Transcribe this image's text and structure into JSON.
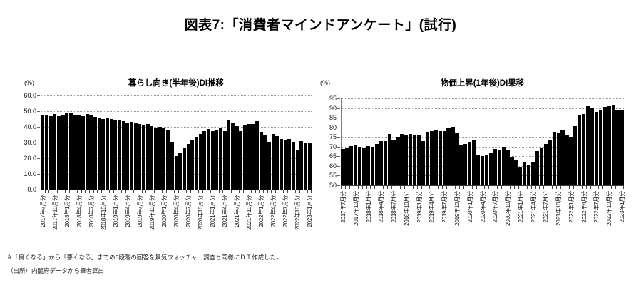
{
  "title": "図表7:「消費者マインドアンケート」(試行)",
  "notes": [
    "※「良くなる」から「悪くなる」までの5段階の回答を景気ウォッチャー調査と同様にＤＩ作成した。",
    "（出所）内閣府データから筆者算出"
  ],
  "bar_color": "#000000",
  "grid_color": "#9a9a9a",
  "chart_data": [
    {
      "type": "bar",
      "title": "暮らし向き(半年後)DI推移",
      "unit": "(%)",
      "ylabel": "%",
      "ylim": [
        0,
        60
      ],
      "ystep": 10,
      "y_tick_labels": [
        "60.0",
        "50.0",
        "40.0",
        "30.0",
        "20.0",
        "10.0",
        "0.0"
      ],
      "grid": "on",
      "legend": "none",
      "x_label_interval": 3,
      "categories": [
        "2017年7月分",
        "2017年8月分",
        "2017年9月分",
        "2017年10月分",
        "2017年11月分",
        "2017年12月分",
        "2018年1月分",
        "2018年2月分",
        "2018年3月分",
        "2018年4月分",
        "2018年5月分",
        "2018年6月分",
        "2018年7月分",
        "2018年8月分",
        "2018年9月分",
        "2018年10月分",
        "2018年11月分",
        "2018年12月分",
        "2019年1月分",
        "2019年2月分",
        "2019年3月分",
        "2019年4月分",
        "2019年5月分",
        "2019年6月分",
        "2019年7月分",
        "2019年8月分",
        "2019年9月分",
        "2019年10月分",
        "2019年11月分",
        "2019年12月分",
        "2020年1月分",
        "2020年2月分",
        "2020年3月分",
        "2020年4月分",
        "2020年5月分",
        "2020年6月分",
        "2020年7月分",
        "2020年8月分",
        "2020年9月分",
        "2020年10月分",
        "2020年11月分",
        "2020年12月分",
        "2021年1月分",
        "2021年2月分",
        "2021年3月分",
        "2021年4月分",
        "2021年5月分",
        "2021年6月分",
        "2021年7月分",
        "2021年8月分",
        "2021年9月分",
        "2021年10月分",
        "2021年11月分",
        "2021年12月分",
        "2022年1月分",
        "2022年2月分",
        "2022年3月分",
        "2022年4月分",
        "2022年5月分",
        "2022年6月分",
        "2022年7月分",
        "2022年8月分",
        "2022年9月分",
        "2022年10月分",
        "2022年11月分",
        "2022年12月分",
        "2023年1月分"
      ],
      "values": [
        47.4,
        47.7,
        47.0,
        48.1,
        46.6,
        47.2,
        49.0,
        48.5,
        47.4,
        47.8,
        47.0,
        48.2,
        47.6,
        46.5,
        45.8,
        45.2,
        45.5,
        44.8,
        44.0,
        44.3,
        43.5,
        42.7,
        43.1,
        42.3,
        41.9,
        41.3,
        41.7,
        40.4,
        39.7,
        40.1,
        39.3,
        37.9,
        30.6,
        21.5,
        23.2,
        26.8,
        29.2,
        32.0,
        33.6,
        35.6,
        37.4,
        38.6,
        37.5,
        38.2,
        39.2,
        37.4,
        44.2,
        42.7,
        40.5,
        37.4,
        41.3,
        42.0,
        41.6,
        43.5,
        36.7,
        34.4,
        30.6,
        35.5,
        34.0,
        32.1,
        31.5,
        32.3,
        30.3,
        25.4,
        30.9,
        29.7,
        29.8
      ]
    },
    {
      "type": "bar",
      "title": "物価上昇(1年後)DI果移",
      "unit": "(%)",
      "ylabel": "%",
      "ylim": [
        50,
        95
      ],
      "ystep": 5,
      "y_tick_labels": [
        "95",
        "90",
        "85",
        "80",
        "75",
        "70",
        "65",
        "60",
        "55",
        "50"
      ],
      "grid": "on",
      "legend": "none",
      "x_label_interval": 3,
      "categories": [
        "2017年7月分",
        "2017年8月分",
        "2017年9月分",
        "2017年10月分",
        "2017年11月分",
        "2017年12月分",
        "2018年1月分",
        "2018年2月分",
        "2018年3月分",
        "2018年4月分",
        "2018年5月分",
        "2018年6月分",
        "2018年7月分",
        "2018年8月分",
        "2018年9月分",
        "2018年10月分",
        "2018年11月分",
        "2018年12月分",
        "2019年1月分",
        "2019年2月分",
        "2019年3月分",
        "2019年4月分",
        "2019年5月分",
        "2019年6月分",
        "2019年7月分",
        "2019年8月分",
        "2019年9月分",
        "2019年10月分",
        "2019年11月分",
        "2019年12月分",
        "2020年1月分",
        "2020年2月分",
        "2020年3月分",
        "2020年4月分",
        "2020年5月分",
        "2020年6月分",
        "2020年7月分",
        "2020年8月分",
        "2020年9月分",
        "2020年10月分",
        "2020年11月分",
        "2020年12月分",
        "2021年1月分",
        "2021年2月分",
        "2021年3月分",
        "2021年4月分",
        "2021年5月分",
        "2021年6月分",
        "2021年7月分",
        "2021年8月分",
        "2021年9月分",
        "2021年10月分",
        "2021年11月分",
        "2021年12月分",
        "2022年1月分",
        "2022年2月分",
        "2022年3月分",
        "2022年4月分",
        "2022年5月分",
        "2022年6月分",
        "2022年7月分",
        "2022年8月分",
        "2022年9月分",
        "2022年10月分",
        "2022年11月分",
        "2022年12月分",
        "2023年1月分"
      ],
      "values": [
        68.7,
        69.3,
        70.2,
        71.0,
        69.8,
        69.6,
        70.3,
        70.0,
        71.5,
        72.8,
        73.0,
        76.7,
        73.4,
        75.0,
        76.4,
        76.2,
        76.5,
        76.0,
        76.3,
        73.0,
        77.8,
        78.2,
        78.5,
        77.9,
        78.0,
        79.5,
        80.1,
        77.1,
        70.9,
        71.5,
        72.5,
        73.2,
        66.0,
        65.2,
        65.6,
        66.5,
        68.9,
        68.3,
        69.8,
        68.0,
        64.6,
        63.4,
        59.7,
        62.2,
        60.5,
        62.2,
        67.7,
        69.5,
        71.4,
        73.2,
        77.5,
        76.9,
        78.8,
        75.9,
        75.1,
        80.6,
        86.2,
        86.8,
        91.1,
        90.2,
        88.0,
        88.6,
        90.5,
        91.1,
        91.7,
        89.2,
        89.0
      ]
    }
  ]
}
